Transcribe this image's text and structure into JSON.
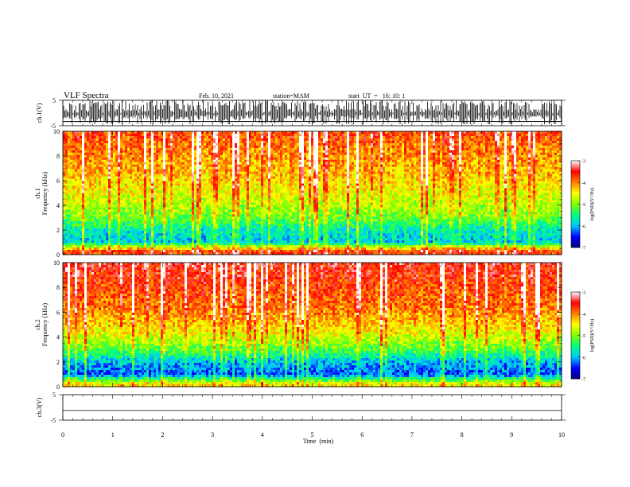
{
  "header": {
    "title": "VLF Spectra",
    "date": "Feb. 10, 2021",
    "station": "station=MAM",
    "start": "start  UT  =   16: 10: 1"
  },
  "chart_data": [
    {
      "type": "line",
      "panel": "ch1-waveform",
      "ylabel": "ch.1(V)",
      "ylim": [
        -5,
        5
      ],
      "y_ticks": [
        "5",
        "-5"
      ],
      "xlim": [
        0,
        10
      ],
      "description_of_trace": "dense impulsive sferic spikes spanning most of the -5 to 5 V range"
    },
    {
      "type": "heatmap",
      "panel": "ch1-spectrogram",
      "ylabel": "ch.1\nFrequency (kHz)",
      "ylim": [
        0,
        10
      ],
      "y_ticks": [
        "0",
        "2",
        "4",
        "6",
        "8",
        "10"
      ],
      "xlim": [
        0,
        10
      ],
      "colorbar": {
        "label": "log(PSD)(V²/Hz)",
        "range": [
          -7,
          -3
        ],
        "ticks": [
          "-3",
          "-4",
          "-5",
          "-6",
          "-7"
        ],
        "colors": [
          "#000080",
          "#0000ff",
          "#00c8ff",
          "#00ff80",
          "#80ff00",
          "#ffff00",
          "#ff8000",
          "#ff0000",
          "#ffffff"
        ]
      },
      "profile": [
        {
          "freq_khz": 0.3,
          "level": -3.8
        },
        {
          "freq_khz": 1.0,
          "level": -6.0
        },
        {
          "freq_khz": 2.0,
          "level": -5.8
        },
        {
          "freq_khz": 3.0,
          "level": -5.2
        },
        {
          "freq_khz": 4.5,
          "level": -4.8
        },
        {
          "freq_khz": 6.5,
          "level": -4.4
        },
        {
          "freq_khz": 9.0,
          "level": -4.1
        },
        {
          "freq_khz": 10.0,
          "level": -3.9
        }
      ]
    },
    {
      "type": "heatmap",
      "panel": "ch2-spectrogram",
      "ylabel": "ch.2\nFrequency (kHz)",
      "ylim": [
        0,
        10
      ],
      "y_ticks": [
        "0",
        "2",
        "4",
        "6",
        "8",
        "10"
      ],
      "xlim": [
        0,
        10
      ],
      "colorbar": {
        "label": "log(PSD)(V²/Hz)",
        "range": [
          -7,
          -3
        ],
        "ticks": [
          "-3",
          "-4",
          "-5",
          "-6",
          "-7"
        ],
        "colors": [
          "#000080",
          "#0000ff",
          "#00c8ff",
          "#00ff80",
          "#80ff00",
          "#ffff00",
          "#ff8000",
          "#ff0000",
          "#ffffff"
        ]
      },
      "profile": [
        {
          "freq_khz": 0.2,
          "level": -4.5
        },
        {
          "freq_khz": 1.0,
          "level": -6.4
        },
        {
          "freq_khz": 2.0,
          "level": -6.1
        },
        {
          "freq_khz": 3.0,
          "level": -5.3
        },
        {
          "freq_khz": 4.5,
          "level": -4.6
        },
        {
          "freq_khz": 6.5,
          "level": -4.1
        },
        {
          "freq_khz": 9.0,
          "level": -3.8
        },
        {
          "freq_khz": 10.0,
          "level": -3.7
        }
      ]
    },
    {
      "type": "line",
      "panel": "ch3-waveform",
      "ylabel": "ch.3(V)",
      "ylim": [
        -5,
        5
      ],
      "y_ticks": [
        "5",
        "-5"
      ],
      "xlim": [
        0,
        10
      ],
      "xlabel": "Time  (min)",
      "x_ticks": [
        "0",
        "1",
        "2",
        "3",
        "4",
        "5",
        "6",
        "7",
        "8",
        "9",
        "10"
      ],
      "values_constant": -1.2
    }
  ]
}
